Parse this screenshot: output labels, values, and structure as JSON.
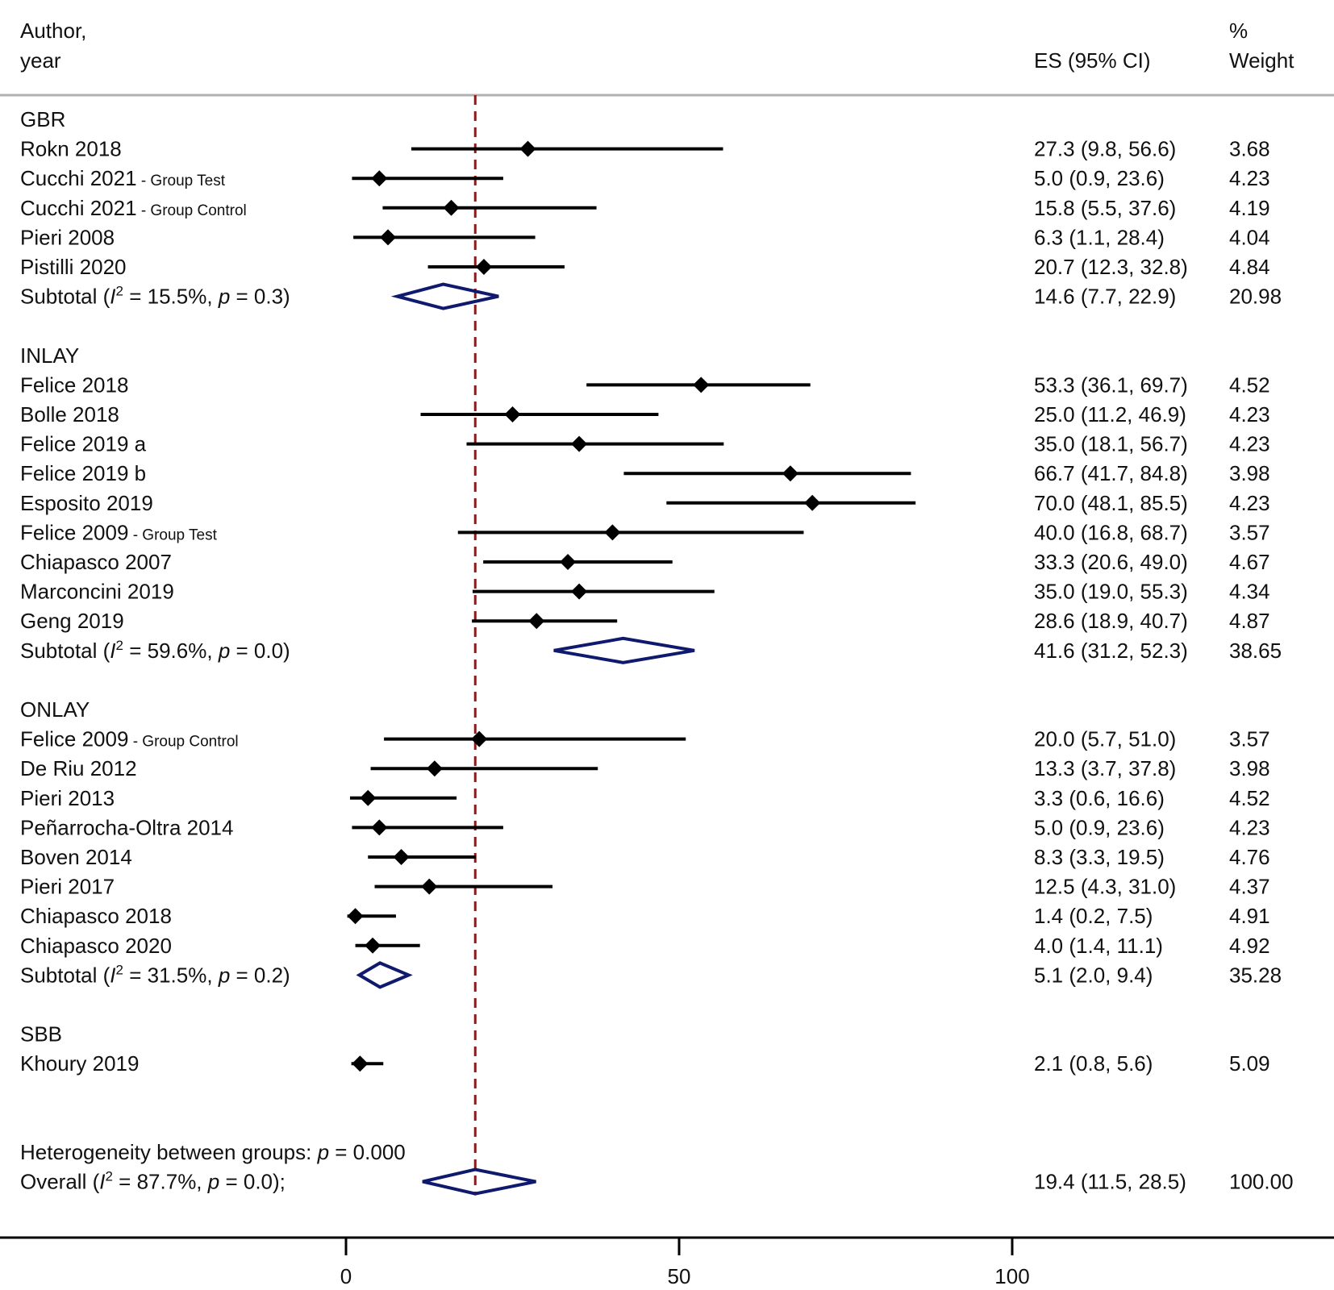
{
  "header": {
    "author_line1": "Author,",
    "author_line2": "year",
    "es_label": "ES (95% CI)",
    "weight_line1": "%",
    "weight_line2": "Weight"
  },
  "colors": {
    "point": "#000000",
    "diamond": "#0f1a6e",
    "ref_line": "#8b1a1a",
    "rule": "#b0b0b0"
  },
  "chart_data": {
    "type": "forest",
    "xlim": [
      -6,
      145
    ],
    "xticks": [
      0,
      50,
      100
    ],
    "reference_line": 19.4,
    "rows": [
      {
        "kind": "group",
        "label": "GBR"
      },
      {
        "kind": "study",
        "label": "Rokn 2018",
        "es": 27.3,
        "lo": 9.8,
        "hi": 56.6,
        "es_text": "27.3 (9.8, 56.6)",
        "weight": "3.68"
      },
      {
        "kind": "study",
        "label": "Cucchi 2021",
        "sublabel": " - Group Test",
        "es": 5.0,
        "lo": 0.9,
        "hi": 23.6,
        "es_text": "5.0 (0.9, 23.6)",
        "weight": "4.23"
      },
      {
        "kind": "study",
        "label": "Cucchi 2021",
        "sublabel": " - Group Control",
        "es": 15.8,
        "lo": 5.5,
        "hi": 37.6,
        "es_text": "15.8 (5.5, 37.6)",
        "weight": "4.19"
      },
      {
        "kind": "study",
        "label": "Pieri 2008",
        "es": 6.3,
        "lo": 1.1,
        "hi": 28.4,
        "es_text": "6.3 (1.1, 28.4)",
        "weight": "4.04"
      },
      {
        "kind": "study",
        "label": "Pistilli 2020",
        "es": 20.7,
        "lo": 12.3,
        "hi": 32.8,
        "es_text": "20.7 (12.3, 32.8)",
        "weight": "4.84"
      },
      {
        "kind": "subtotal",
        "label": "Subtotal",
        "i2": "15.5%",
        "p": "0.3",
        "es": 14.6,
        "lo": 7.7,
        "hi": 22.9,
        "es_text": "14.6 (7.7, 22.9)",
        "weight": "20.98"
      },
      {
        "kind": "blank"
      },
      {
        "kind": "group",
        "label": "INLAY"
      },
      {
        "kind": "study",
        "label": "Felice 2018",
        "es": 53.3,
        "lo": 36.1,
        "hi": 69.7,
        "es_text": "53.3 (36.1, 69.7)",
        "weight": "4.52"
      },
      {
        "kind": "study",
        "label": "Bolle 2018",
        "es": 25.0,
        "lo": 11.2,
        "hi": 46.9,
        "es_text": "25.0 (11.2, 46.9)",
        "weight": "4.23"
      },
      {
        "kind": "study",
        "label": "Felice 2019 a",
        "es": 35.0,
        "lo": 18.1,
        "hi": 56.7,
        "es_text": "35.0 (18.1, 56.7)",
        "weight": "4.23"
      },
      {
        "kind": "study",
        "label": "Felice 2019 b",
        "es": 66.7,
        "lo": 41.7,
        "hi": 84.8,
        "es_text": "66.7 (41.7, 84.8)",
        "weight": "3.98"
      },
      {
        "kind": "study",
        "label": "Esposito 2019",
        "es": 70.0,
        "lo": 48.1,
        "hi": 85.5,
        "es_text": "70.0 (48.1, 85.5)",
        "weight": "4.23"
      },
      {
        "kind": "study",
        "label": "Felice 2009",
        "sublabel": " - Group Test",
        "es": 40.0,
        "lo": 16.8,
        "hi": 68.7,
        "es_text": "40.0 (16.8, 68.7)",
        "weight": "3.57"
      },
      {
        "kind": "study",
        "label": "Chiapasco 2007",
        "es": 33.3,
        "lo": 20.6,
        "hi": 49.0,
        "es_text": "33.3 (20.6, 49.0)",
        "weight": "4.67"
      },
      {
        "kind": "study",
        "label": "Marconcini 2019",
        "es": 35.0,
        "lo": 19.0,
        "hi": 55.3,
        "es_text": "35.0 (19.0, 55.3)",
        "weight": "4.34"
      },
      {
        "kind": "study",
        "label": "Geng 2019",
        "es": 28.6,
        "lo": 18.9,
        "hi": 40.7,
        "es_text": "28.6 (18.9, 40.7)",
        "weight": "4.87"
      },
      {
        "kind": "subtotal",
        "label": "Subtotal",
        "i2": "59.6%",
        "p": "0.0",
        "es": 41.6,
        "lo": 31.2,
        "hi": 52.3,
        "es_text": "41.6 (31.2, 52.3)",
        "weight": "38.65"
      },
      {
        "kind": "blank"
      },
      {
        "kind": "group",
        "label": "ONLAY"
      },
      {
        "kind": "study",
        "label": "Felice 2009",
        "sublabel": " - Group Control",
        "es": 20.0,
        "lo": 5.7,
        "hi": 51.0,
        "es_text": "20.0 (5.7, 51.0)",
        "weight": "3.57"
      },
      {
        "kind": "study",
        "label": "De Riu 2012",
        "es": 13.3,
        "lo": 3.7,
        "hi": 37.8,
        "es_text": "13.3 (3.7, 37.8)",
        "weight": "3.98"
      },
      {
        "kind": "study",
        "label": "Pieri 2013",
        "es": 3.3,
        "lo": 0.6,
        "hi": 16.6,
        "es_text": "3.3 (0.6, 16.6)",
        "weight": "4.52"
      },
      {
        "kind": "study",
        "label": "Peñarrocha-Oltra 2014",
        "es": 5.0,
        "lo": 0.9,
        "hi": 23.6,
        "es_text": "5.0 (0.9, 23.6)",
        "weight": "4.23"
      },
      {
        "kind": "study",
        "label": "Boven 2014",
        "es": 8.3,
        "lo": 3.3,
        "hi": 19.5,
        "es_text": "8.3 (3.3, 19.5)",
        "weight": "4.76"
      },
      {
        "kind": "study",
        "label": "Pieri 2017",
        "es": 12.5,
        "lo": 4.3,
        "hi": 31.0,
        "es_text": "12.5 (4.3, 31.0)",
        "weight": "4.37"
      },
      {
        "kind": "study",
        "label": "Chiapasco 2018",
        "es": 1.4,
        "lo": 0.2,
        "hi": 7.5,
        "es_text": "1.4 (0.2, 7.5)",
        "weight": "4.91"
      },
      {
        "kind": "study",
        "label": "Chiapasco 2020",
        "es": 4.0,
        "lo": 1.4,
        "hi": 11.1,
        "es_text": "4.0 (1.4, 11.1)",
        "weight": "4.92"
      },
      {
        "kind": "subtotal",
        "label": "Subtotal",
        "i2": "31.5%",
        "p": "0.2",
        "es": 5.1,
        "lo": 2.0,
        "hi": 9.4,
        "es_text": "5.1 (2.0, 9.4)",
        "weight": "35.28"
      },
      {
        "kind": "blank"
      },
      {
        "kind": "group",
        "label": "SBB"
      },
      {
        "kind": "study",
        "label": "Khoury 2019",
        "es": 2.1,
        "lo": 0.8,
        "hi": 5.6,
        "es_text": "2.1 (0.8, 5.6)",
        "weight": "5.09"
      },
      {
        "kind": "blank"
      },
      {
        "kind": "blank"
      },
      {
        "kind": "heterogeneity",
        "text": "Heterogeneity between groups: ",
        "p": "0.000"
      },
      {
        "kind": "overall",
        "label": "Overall",
        "i2": "87.7%",
        "p": "0.0",
        "es": 19.4,
        "lo": 11.5,
        "hi": 28.5,
        "es_text": "19.4 (11.5, 28.5)",
        "weight": "100.00"
      }
    ]
  }
}
